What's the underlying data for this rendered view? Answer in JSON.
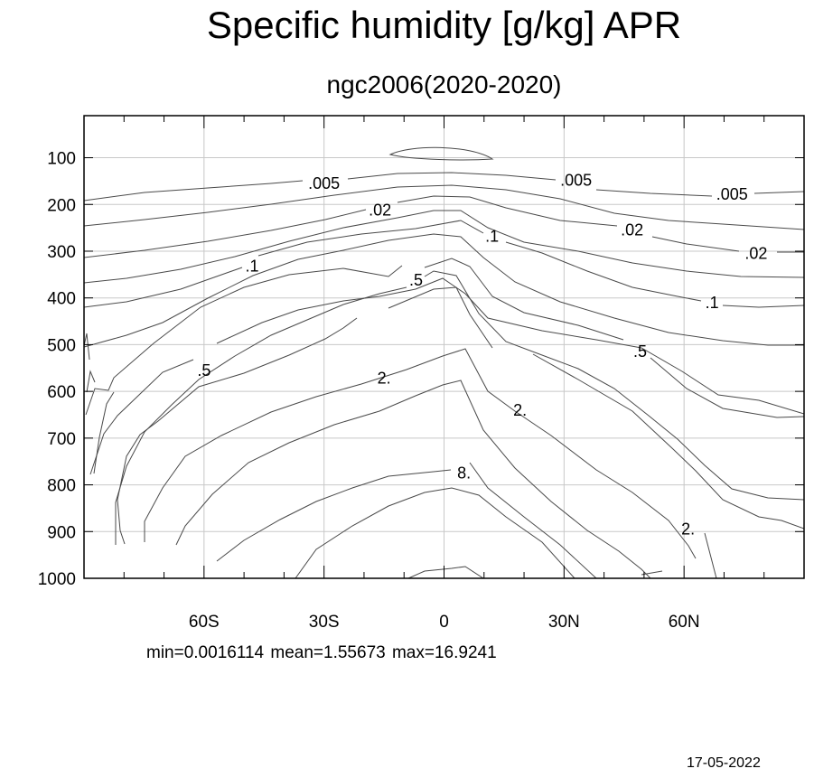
{
  "chart_data": {
    "type": "contour",
    "title": "Specific humidity [g/kg] APR",
    "subtitle": "ngc2006(2020-2020)",
    "xlabel": "",
    "ylabel": "",
    "x_ticks": [
      {
        "value": -60,
        "label": "60S"
      },
      {
        "value": -30,
        "label": "30S"
      },
      {
        "value": 0,
        "label": "0"
      },
      {
        "value": 30,
        "label": "30N"
      },
      {
        "value": 60,
        "label": "60N"
      }
    ],
    "y_ticks": [
      100,
      200,
      300,
      400,
      500,
      600,
      700,
      800,
      900,
      1000
    ],
    "xlim": [
      -90,
      90
    ],
    "ylim": [
      1000,
      10
    ],
    "grid": true,
    "contour_labels": [
      {
        "text": ".005",
        "lat": -30,
        "p": 155
      },
      {
        "text": ".005",
        "lat": 33,
        "p": 148
      },
      {
        "text": ".005",
        "lat": 72,
        "p": 178
      },
      {
        "text": ".02",
        "lat": -16,
        "p": 212
      },
      {
        "text": ".02",
        "lat": 47,
        "p": 255
      },
      {
        "text": ".02",
        "lat": 78,
        "p": 305
      },
      {
        "text": ".1",
        "lat": -48,
        "p": 332
      },
      {
        "text": ".1",
        "lat": 12,
        "p": 268
      },
      {
        "text": ".1",
        "lat": 67,
        "p": 410
      },
      {
        "text": ".5",
        "lat": -7,
        "p": 362
      },
      {
        "text": ".5",
        "lat": -60,
        "p": 555
      },
      {
        "text": ".5",
        "lat": 49,
        "p": 515
      },
      {
        "text": "2.",
        "lat": -15,
        "p": 572
      },
      {
        "text": "2.",
        "lat": 19,
        "p": 640
      },
      {
        "text": "2.",
        "lat": 61,
        "p": 895
      },
      {
        "text": "8.",
        "lat": 5,
        "p": 775
      }
    ],
    "min": 0.0016114,
    "mean": 1.55673,
    "max": 16.9241
  },
  "stats_text": "min=0.0016114   mean=1.55673   max=16.9241",
  "date": "17-05-2022"
}
